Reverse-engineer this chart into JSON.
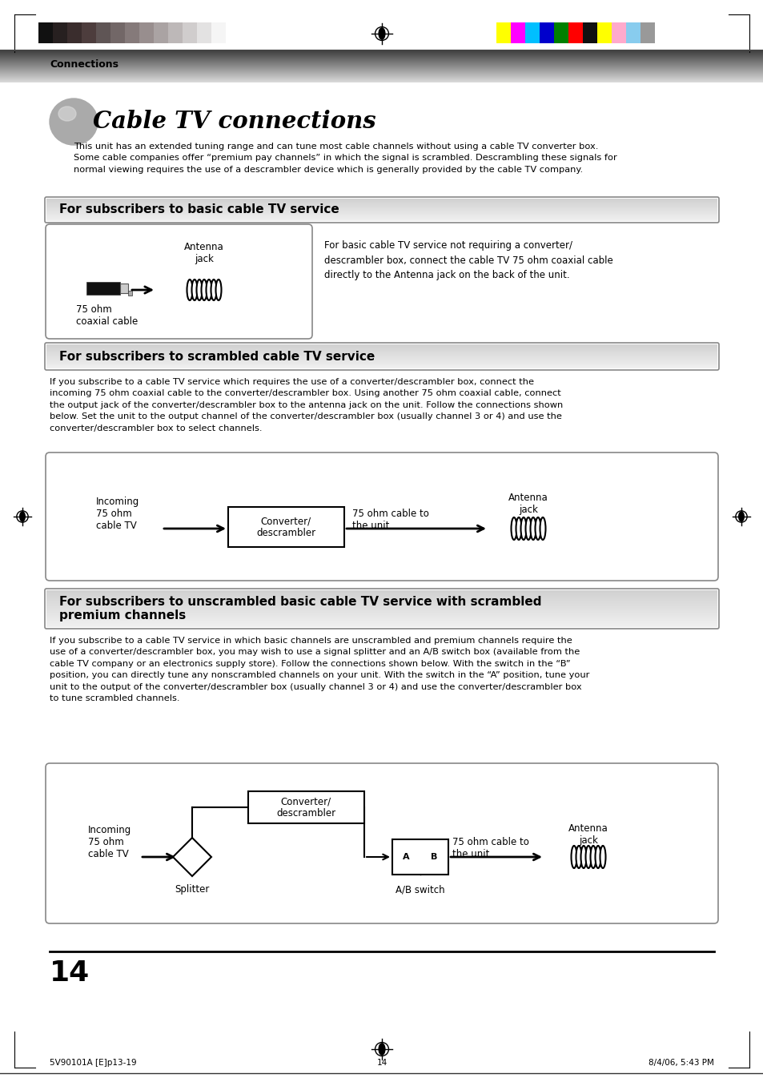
{
  "page_bg": "#ffffff",
  "header_text": "Connections",
  "title": "Cable TV connections",
  "intro_text": "This unit has an extended tuning range and can tune most cable channels without using a cable TV converter box.\nSome cable companies offer “premium pay channels” in which the signal is scrambled. Descrambling these signals for\nnormal viewing requires the use of a descrambler device which is generally provided by the cable TV company.",
  "section1_title": "For subscribers to basic cable TV service",
  "section1_body": "For basic cable TV service not requiring a converter/\ndescrambler box, connect the cable TV 75 ohm coaxial cable\ndirectly to the Antenna jack on the back of the unit.",
  "section1_label_antenna": "Antenna\njack",
  "section1_label_cable": "75 ohm\ncoaxial cable",
  "section2_title": "For subscribers to scrambled cable TV service",
  "section2_body": "If you subscribe to a cable TV service which requires the use of a converter/descrambler box, connect the\nincoming 75 ohm coaxial cable to the converter/descrambler box. Using another 75 ohm coaxial cable, connect\nthe output jack of the converter/descrambler box to the antenna jack on the unit. Follow the connections shown\nbelow. Set the unit to the output channel of the converter/descrambler box (usually channel 3 or 4) and use the\nconverter/descrambler box to select channels.",
  "section2_label_incoming": "Incoming\n75 ohm\ncable TV",
  "section2_label_converter": "Converter/\ndescrambler",
  "section2_label_cable": "75 ohm cable to\nthe unit",
  "section2_label_antenna": "Antenna\njack",
  "section3_title": "For subscribers to unscrambled basic cable TV service with scrambled\npremium channels",
  "section3_body": "If you subscribe to a cable TV service in which basic channels are unscrambled and premium channels require the\nuse of a converter/descrambler box, you may wish to use a signal splitter and an A/B switch box (available from the\ncable TV company or an electronics supply store). Follow the connections shown below. With the switch in the “B”\nposition, you can directly tune any nonscrambled channels on your unit. With the switch in the “A” position, tune your\nunit to the output of the converter/descrambler box (usually channel 3 or 4) and use the converter/descrambler box\nto tune scrambled channels.",
  "section3_label_incoming": "Incoming\n75 ohm\ncable TV",
  "section3_label_converter": "Converter/\ndescrambler",
  "section3_label_splitter": "Splitter",
  "section3_label_ab": "A/B switch",
  "section3_label_cable": "75 ohm cable to\nthe unit",
  "section3_label_antenna": "Antenna\njack",
  "page_number": "14",
  "footer_left": "5V90101A [E]p13-19",
  "footer_center": "14",
  "footer_right": "8/4/06, 5:43 PM",
  "top_bar_colors_left": [
    "#111111",
    "#272020",
    "#3a2d2d",
    "#4d3d3d",
    "#5f5555",
    "#726767",
    "#857a7a",
    "#988e8e",
    "#aaa3a3",
    "#bdb8b8",
    "#d0cdcd",
    "#e3e2e2",
    "#f5f5f5"
  ],
  "top_bar_colors_right": [
    "#ffff00",
    "#ff00ff",
    "#00bfff",
    "#0000cc",
    "#008000",
    "#ff0000",
    "#111111",
    "#ffff00",
    "#ffaacc",
    "#88ccee",
    "#999999"
  ]
}
